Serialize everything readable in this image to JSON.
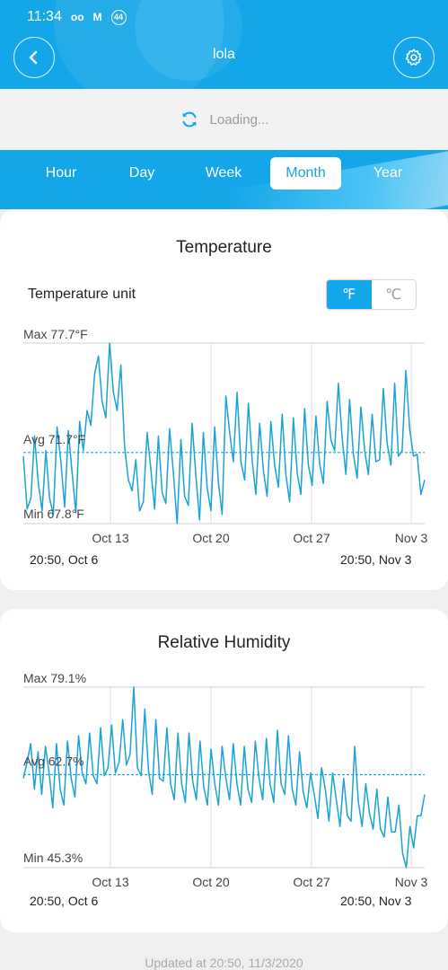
{
  "status_bar": {
    "time": "11:34",
    "badge": "44"
  },
  "header": {
    "title": "lola"
  },
  "loading": {
    "text": "Loading..."
  },
  "tabs": [
    {
      "label": "Hour",
      "active": false
    },
    {
      "label": "Day",
      "active": false
    },
    {
      "label": "Week",
      "active": false
    },
    {
      "label": "Month",
      "active": true
    },
    {
      "label": "Year",
      "active": false
    }
  ],
  "temperature_card": {
    "title": "Temperature",
    "unit_label": "Temperature unit",
    "unit_f": "℉",
    "unit_c": "℃",
    "selected_unit": "F",
    "range_start": "20:50,  Oct 6",
    "range_end": "20:50,  Nov 3"
  },
  "humidity_card": {
    "title": "Relative Humidity",
    "range_start": "20:50,  Oct 6",
    "range_end": "20:50,  Nov 3"
  },
  "footer": {
    "updated": "Updated at 20:50,  11/3/2020"
  },
  "colors": {
    "accent": "#13a6e8",
    "line": "#1aa3d6"
  },
  "chart_data": [
    {
      "type": "line",
      "title": "Temperature",
      "max_label": "Max 77.7°F",
      "avg_label": "Avg 71.7°F",
      "min_label": "Min 67.8°F",
      "ylim": [
        67.8,
        77.7
      ],
      "avg": 71.7,
      "x_ticks": [
        "Oct 13",
        "Oct 20",
        "Oct 27",
        "Nov 3"
      ],
      "series": [
        {
          "values": [
            71.5,
            68.6,
            69.2,
            72.6,
            70.0,
            68.5,
            71.8,
            69.2,
            68.3,
            73.1,
            71.2,
            68.7,
            72.9,
            70.6,
            68.4,
            73.4,
            71.8,
            74.0,
            73.2,
            76.0,
            77.0,
            74.5,
            73.6,
            77.7,
            75.0,
            74.0,
            76.5,
            72.0,
            70.2,
            69.6,
            71.3,
            68.5,
            69.0,
            72.8,
            70.8,
            68.6,
            72.6,
            69.5,
            68.9,
            73.0,
            70.6,
            67.8,
            72.4,
            69.3,
            68.8,
            73.3,
            70.4,
            68.0,
            72.8,
            69.8,
            68.5,
            73.1,
            70.1,
            68.3,
            74.8,
            72.8,
            71.2,
            75.0,
            71.2,
            70.2,
            74.4,
            71.3,
            69.4,
            73.3,
            70.7,
            69.3,
            73.4,
            71.0,
            69.8,
            73.8,
            70.5,
            69.0,
            73.6,
            70.6,
            69.4,
            74.1,
            71.0,
            69.9,
            73.7,
            71.1,
            70.0,
            74.5,
            72.4,
            71.8,
            75.5,
            72.5,
            70.5,
            74.6,
            71.6,
            70.3,
            74.2,
            71.8,
            70.5,
            73.8,
            71.2,
            71.3,
            75.2,
            72.2,
            71.0,
            75.5,
            71.5,
            71.8,
            76.2,
            73.0,
            71.5,
            71.6,
            69.4,
            70.2
          ]
        }
      ]
    },
    {
      "type": "line",
      "title": "Relative Humidity",
      "max_label": "Max 79.1%",
      "avg_label": "Avg 62.7%",
      "min_label": "Min 45.3%",
      "ylim": [
        45.3,
        79.1
      ],
      "avg": 62.7,
      "x_ticks": [
        "Oct 13",
        "Oct 20",
        "Oct 27",
        "Nov 3"
      ],
      "series": [
        {
          "values": [
            62.0,
            65.0,
            68.5,
            60.0,
            67.0,
            59.0,
            68.0,
            63.0,
            56.5,
            68.5,
            60.0,
            57.0,
            69.0,
            62.0,
            58.5,
            70.0,
            63.0,
            61.0,
            70.5,
            62.5,
            61.0,
            71.5,
            62.5,
            64.0,
            72.0,
            63.0,
            65.0,
            73.0,
            64.5,
            66.5,
            79.1,
            64.0,
            62.5,
            75.0,
            63.5,
            59.0,
            73.0,
            62.0,
            61.5,
            71.5,
            61.0,
            58.0,
            70.5,
            61.0,
            57.5,
            70.5,
            61.5,
            58.0,
            69.0,
            60.5,
            57.0,
            67.5,
            61.0,
            57.0,
            68.0,
            62.0,
            58.0,
            68.5,
            61.0,
            57.0,
            68.0,
            60.0,
            57.5,
            69.0,
            62.0,
            58.0,
            69.5,
            61.0,
            57.5,
            71.0,
            61.0,
            59.0,
            70.0,
            60.0,
            57.0,
            67.0,
            59.5,
            56.5,
            63.0,
            59.0,
            54.5,
            64.0,
            60.0,
            54.0,
            63.0,
            58.0,
            53.0,
            62.0,
            55.0,
            54.0,
            68.0,
            57.5,
            53.0,
            61.0,
            55.5,
            52.5,
            60.0,
            52.5,
            51.0,
            58.5,
            52.0,
            52.0,
            57.0,
            48.0,
            45.3,
            53.0,
            49.0,
            55.0,
            55.0,
            59.0
          ]
        }
      ]
    }
  ]
}
